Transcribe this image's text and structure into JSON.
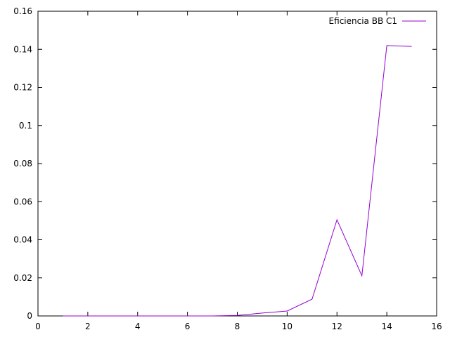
{
  "chart_data": {
    "type": "line",
    "title": "",
    "xlabel": "",
    "ylabel": "",
    "xlim": [
      0,
      16
    ],
    "ylim": [
      0,
      0.16
    ],
    "x_ticks": [
      0,
      2,
      4,
      6,
      8,
      10,
      12,
      14,
      16
    ],
    "y_ticks": [
      0,
      0.02,
      0.04,
      0.06,
      0.08,
      0.1,
      0.12,
      0.14,
      0.16
    ],
    "x_tick_labels": [
      "0",
      "2",
      "4",
      "6",
      "8",
      "10",
      "12",
      "14",
      "16"
    ],
    "y_tick_labels": [
      "0",
      "0.02",
      "0.04",
      "0.06",
      "0.08",
      "0.1",
      "0.12",
      "0.14",
      "0.16"
    ],
    "grid": false,
    "legend_position": "top-right",
    "series": [
      {
        "name": "Eficiencia BB C1",
        "color": "#9400d3",
        "x": [
          1,
          2,
          3,
          4,
          5,
          6,
          7,
          8,
          9,
          10,
          11,
          12,
          13,
          14,
          15
        ],
        "y": [
          0.0,
          0.0,
          0.0,
          0.0,
          0.0,
          0.0,
          0.0,
          0.0003,
          0.0015,
          0.0026,
          0.0088,
          0.0505,
          0.0211,
          0.142,
          0.1415
        ]
      }
    ]
  }
}
